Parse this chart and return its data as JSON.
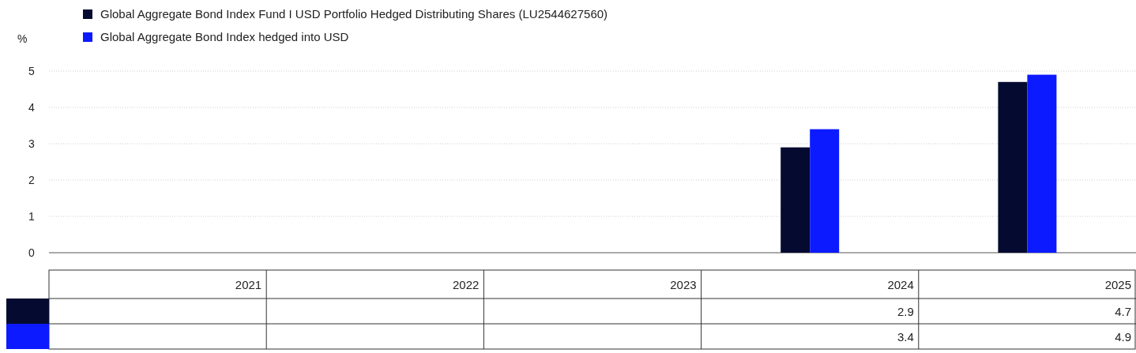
{
  "chart_data": {
    "type": "bar",
    "ylabel": "%",
    "categories": [
      "2021",
      "2022",
      "2023",
      "2024",
      "2025"
    ],
    "series": [
      {
        "name": "Global Aggregate Bond Index Fund I USD Portfolio Hedged Distributing Shares (LU2544627560)",
        "color": "#050a30",
        "values": [
          null,
          null,
          null,
          2.9,
          4.7
        ]
      },
      {
        "name": "Global Aggregate Bond Index hedged into USD",
        "color": "#0c1aff",
        "values": [
          null,
          null,
          null,
          3.4,
          4.9
        ]
      }
    ],
    "ylim": [
      0,
      5
    ],
    "yticks": [
      0,
      1,
      2,
      3,
      4,
      5
    ],
    "grid": "y",
    "legend": "top left",
    "data_labels": true
  }
}
